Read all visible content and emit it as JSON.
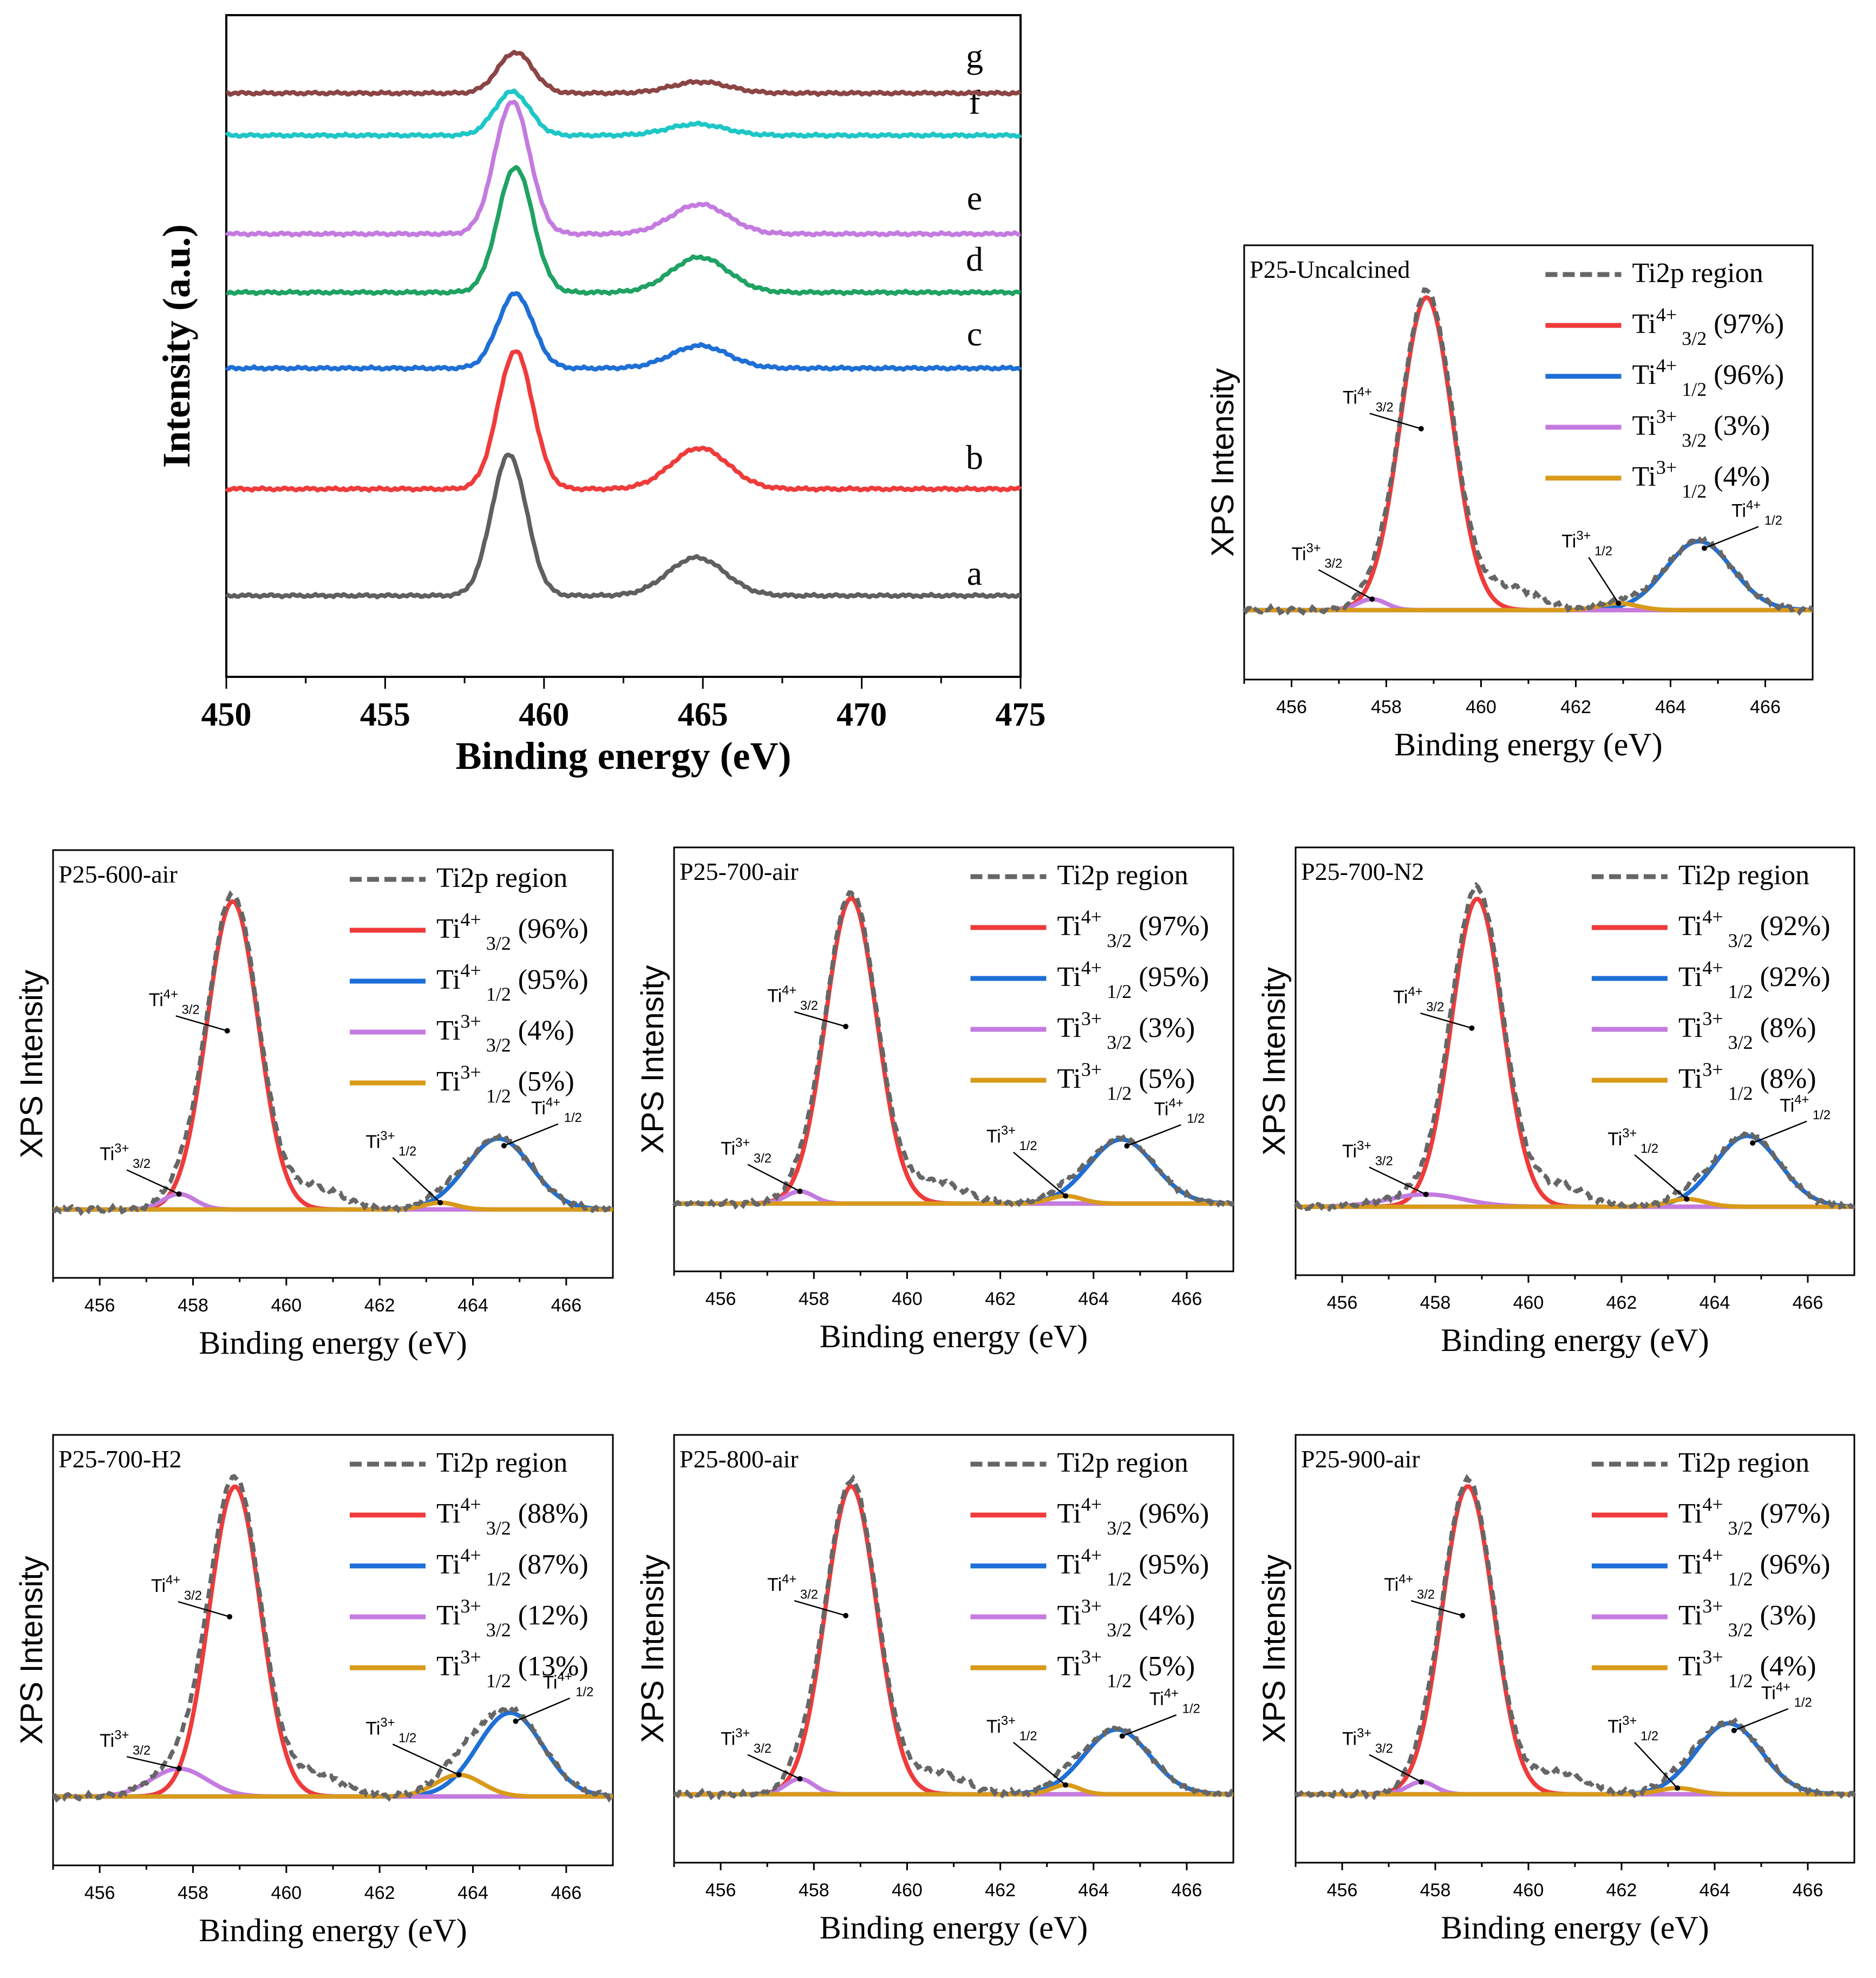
{
  "chart_data": [
    {
      "type": "line",
      "panel": "overview",
      "ylabel": "Intensity (a.u.)",
      "xlabel": "Binding energy (eV)",
      "xlim": [
        450,
        475
      ],
      "xticks": [
        "450",
        "455",
        "460",
        "465",
        "470",
        "475"
      ],
      "series": [
        {
          "name": "a",
          "color": "#5f5f5f",
          "peak1": 458.9,
          "peak1_height": 1.0,
          "peak2": 464.8,
          "peak2_height": 0.27
        },
        {
          "name": "b",
          "color": "#ef3b3b",
          "peak1": 459.1,
          "peak1_height": 0.98,
          "peak2": 464.9,
          "peak2_height": 0.29
        },
        {
          "name": "c",
          "color": "#1e6fd6",
          "peak1": 459.1,
          "peak1_height": 0.53,
          "peak2": 464.9,
          "peak2_height": 0.16
        },
        {
          "name": "d",
          "color": "#1fa263",
          "peak1": 459.1,
          "peak1_height": 0.89,
          "peak2": 464.9,
          "peak2_height": 0.25
        },
        {
          "name": "e",
          "color": "#c47be0",
          "peak1": 459.0,
          "peak1_height": 0.94,
          "peak2": 464.9,
          "peak2_height": 0.21
        },
        {
          "name": "f",
          "color": "#1fc6c6",
          "peak1": 459.0,
          "peak1_height": 0.31,
          "peak2": 464.8,
          "peak2_height": 0.08
        },
        {
          "name": "g",
          "color": "#8b4545",
          "peak1": 459.1,
          "peak1_height": 0.29,
          "peak2": 464.9,
          "peak2_height": 0.08
        }
      ]
    },
    {
      "type": "line",
      "panel": "deconvolution",
      "title": "P25-Uncalcined",
      "xlabel": "Binding energy (eV)",
      "ylabel": "XPS Intensity",
      "xlim": [
        455,
        467
      ],
      "xticks": [
        "456",
        "458",
        "460",
        "462",
        "464",
        "466"
      ],
      "legend": [
        {
          "label": "Ti2p region",
          "value": "",
          "color": "#666666"
        },
        {
          "label": "Ti4+ 3/2",
          "value": "(97%)",
          "color": "#ef3b3b"
        },
        {
          "label": "Ti4+ 1/2",
          "value": "(96%)",
          "color": "#1e6fd6"
        },
        {
          "label": "Ti3+ 3/2",
          "value": "(3%)",
          "color": "#c47be0"
        },
        {
          "label": "Ti3+ 1/2",
          "value": "(4%)",
          "color": "#d99a1a"
        }
      ],
      "peaks": {
        "ti4_32": [
          458.85,
          1.0,
          0.55
        ],
        "ti4_12": [
          464.6,
          0.22,
          0.7
        ],
        "ti3_32": [
          457.7,
          0.035,
          0.3
        ],
        "ti3_12": [
          462.9,
          0.022,
          0.4
        ]
      },
      "annotations": {
        "ti4_32": "Ti4+ 3/2",
        "ti4_12": "Ti4+ 1/2",
        "ti3_32": "Ti3+ 3/2",
        "ti3_12": "Ti3+ 1/2"
      }
    },
    {
      "type": "line",
      "panel": "deconvolution",
      "title": "P25-600-air",
      "xlabel": "Binding energy (eV)",
      "ylabel": "XPS Intensity",
      "xlim": [
        455,
        467
      ],
      "xticks": [
        "456",
        "458",
        "460",
        "462",
        "464",
        "466"
      ],
      "legend": [
        {
          "label": "Ti2p region",
          "value": "",
          "color": "#666666"
        },
        {
          "label": "Ti4+ 3/2",
          "value": "(96%)",
          "color": "#ef3b3b"
        },
        {
          "label": "Ti4+ 1/2",
          "value": "(95%)",
          "color": "#1e6fd6"
        },
        {
          "label": "Ti3+ 3/2",
          "value": "(4%)",
          "color": "#c47be0"
        },
        {
          "label": "Ti3+ 1/2",
          "value": "(5%)",
          "color": "#d99a1a"
        }
      ],
      "peaks": {
        "ti4_32": [
          458.85,
          1.0,
          0.55
        ],
        "ti4_12": [
          464.55,
          0.23,
          0.7
        ],
        "ti3_32": [
          457.7,
          0.05,
          0.35
        ],
        "ti3_12": [
          463.3,
          0.022,
          0.35
        ]
      },
      "annotations": {
        "ti4_32": "Ti4+ 3/2",
        "ti4_12": "Ti4+ 1/2",
        "ti3_32": "Ti3+ 3/2",
        "ti3_12": "Ti3+ 1/2"
      }
    },
    {
      "type": "line",
      "panel": "deconvolution",
      "title": "P25-700-air",
      "xlabel": "Binding energy (eV)",
      "ylabel": "XPS Intensity",
      "xlim": [
        455,
        467
      ],
      "xticks": [
        "456",
        "458",
        "460",
        "462",
        "464",
        "466"
      ],
      "legend": [
        {
          "label": "Ti2p region",
          "value": "",
          "color": "#666666"
        },
        {
          "label": "Ti4+ 3/2",
          "value": "(97%)",
          "color": "#ef3b3b"
        },
        {
          "label": "Ti4+ 1/2",
          "value": "(95%)",
          "color": "#1e6fd6"
        },
        {
          "label": "Ti3+ 3/2",
          "value": "(3%)",
          "color": "#c47be0"
        },
        {
          "label": "Ti3+ 1/2",
          "value": "(5%)",
          "color": "#d99a1a"
        }
      ],
      "peaks": {
        "ti4_32": [
          458.8,
          1.0,
          0.55
        ],
        "ti4_12": [
          464.6,
          0.21,
          0.7
        ],
        "ti3_32": [
          457.7,
          0.04,
          0.3
        ],
        "ti3_12": [
          463.4,
          0.025,
          0.35
        ]
      },
      "annotations": {
        "ti4_32": "Ti4+ 3/2",
        "ti4_12": "Ti4+ 1/2",
        "ti3_32": "Ti3+ 3/2",
        "ti3_12": "Ti3+ 1/2"
      }
    },
    {
      "type": "line",
      "panel": "deconvolution",
      "title": "P25-700-N2",
      "xlabel": "Binding energy (eV)",
      "ylabel": "XPS Intensity",
      "xlim": [
        455,
        467
      ],
      "xticks": [
        "456",
        "458",
        "460",
        "462",
        "464",
        "466"
      ],
      "legend": [
        {
          "label": "Ti2p region",
          "value": "",
          "color": "#666666"
        },
        {
          "label": "Ti4+ 3/2",
          "value": "(92%)",
          "color": "#ef3b3b"
        },
        {
          "label": "Ti4+ 1/2",
          "value": "(92%)",
          "color": "#1e6fd6"
        },
        {
          "label": "Ti3+ 3/2",
          "value": "(8%)",
          "color": "#c47be0"
        },
        {
          "label": "Ti3+ 1/2",
          "value": "(8%)",
          "color": "#d99a1a"
        }
      ],
      "peaks": {
        "ti4_32": [
          458.9,
          1.0,
          0.55
        ],
        "ti4_12": [
          464.7,
          0.23,
          0.7
        ],
        "ti3_32": [
          457.8,
          0.04,
          0.8
        ],
        "ti3_12": [
          463.4,
          0.025,
          0.4
        ]
      },
      "annotations": {
        "ti4_32": "Ti4+ 3/2",
        "ti4_12": "Ti4+ 1/2",
        "ti3_32": "Ti3+ 3/2",
        "ti3_12": "Ti3+ 1/2"
      }
    },
    {
      "type": "line",
      "panel": "deconvolution",
      "title": "P25-700-H2",
      "xlabel": "Binding energy (eV)",
      "ylabel": "XPS Intensity",
      "xlim": [
        455,
        467
      ],
      "xticks": [
        "456",
        "458",
        "460",
        "462",
        "464",
        "466"
      ],
      "legend": [
        {
          "label": "Ti2p region",
          "value": "",
          "color": "#666666"
        },
        {
          "label": "Ti4+ 3/2",
          "value": "(88%)",
          "color": "#ef3b3b"
        },
        {
          "label": "Ti4+ 1/2",
          "value": "(87%)",
          "color": "#1e6fd6"
        },
        {
          "label": "Ti3+ 3/2",
          "value": "(12%)",
          "color": "#c47be0"
        },
        {
          "label": "Ti3+ 1/2",
          "value": "(13%)",
          "color": "#d99a1a"
        }
      ],
      "peaks": {
        "ti4_32": [
          458.9,
          1.0,
          0.55
        ],
        "ti4_12": [
          464.8,
          0.27,
          0.7
        ],
        "ti3_32": [
          457.7,
          0.09,
          0.6
        ],
        "ti3_12": [
          463.7,
          0.07,
          0.5
        ]
      },
      "annotations": {
        "ti4_32": "Ti4+ 3/2",
        "ti4_12": "Ti4+ 1/2",
        "ti3_32": "Ti3+ 3/2",
        "ti3_12": "Ti3+ 1/2"
      }
    },
    {
      "type": "line",
      "panel": "deconvolution",
      "title": "P25-800-air",
      "xlabel": "Binding energy (eV)",
      "ylabel": "XPS Intensity",
      "xlim": [
        455,
        467
      ],
      "xticks": [
        "456",
        "458",
        "460",
        "462",
        "464",
        "466"
      ],
      "legend": [
        {
          "label": "Ti2p region",
          "value": "",
          "color": "#666666"
        },
        {
          "label": "Ti4+ 3/2",
          "value": "(96%)",
          "color": "#ef3b3b"
        },
        {
          "label": "Ti4+ 1/2",
          "value": "(95%)",
          "color": "#1e6fd6"
        },
        {
          "label": "Ti3+ 3/2",
          "value": "(4%)",
          "color": "#c47be0"
        },
        {
          "label": "Ti3+ 1/2",
          "value": "(5%)",
          "color": "#d99a1a"
        }
      ],
      "peaks": {
        "ti4_32": [
          458.8,
          1.0,
          0.55
        ],
        "ti4_12": [
          464.5,
          0.21,
          0.7
        ],
        "ti3_32": [
          457.7,
          0.05,
          0.3
        ],
        "ti3_12": [
          463.4,
          0.03,
          0.3
        ]
      },
      "annotations": {
        "ti4_32": "Ti4+ 3/2",
        "ti4_12": "Ti4+ 1/2",
        "ti3_32": "Ti3+ 3/2",
        "ti3_12": "Ti3+ 1/2"
      }
    },
    {
      "type": "line",
      "panel": "deconvolution",
      "title": "P25-900-air",
      "xlabel": "Binding energy (eV)",
      "ylabel": "XPS Intensity",
      "xlim": [
        455,
        467
      ],
      "xticks": [
        "456",
        "458",
        "460",
        "462",
        "464",
        "466"
      ],
      "legend": [
        {
          "label": "Ti2p region",
          "value": "",
          "color": "#666666"
        },
        {
          "label": "Ti4+ 3/2",
          "value": "(97%)",
          "color": "#ef3b3b"
        },
        {
          "label": "Ti4+ 1/2",
          "value": "(96%)",
          "color": "#1e6fd6"
        },
        {
          "label": "Ti3+ 3/2",
          "value": "(3%)",
          "color": "#c47be0"
        },
        {
          "label": "Ti3+ 1/2",
          "value": "(4%)",
          "color": "#d99a1a"
        }
      ],
      "peaks": {
        "ti4_32": [
          458.7,
          1.0,
          0.55
        ],
        "ti4_12": [
          464.3,
          0.23,
          0.7
        ],
        "ti3_32": [
          457.7,
          0.04,
          0.3
        ],
        "ti3_12": [
          463.2,
          0.02,
          0.4
        ]
      },
      "annotations": {
        "ti4_32": "Ti4+ 3/2",
        "ti4_12": "Ti4+ 1/2",
        "ti3_32": "Ti3+ 3/2",
        "ti3_12": "Ti3+ 1/2"
      }
    }
  ]
}
